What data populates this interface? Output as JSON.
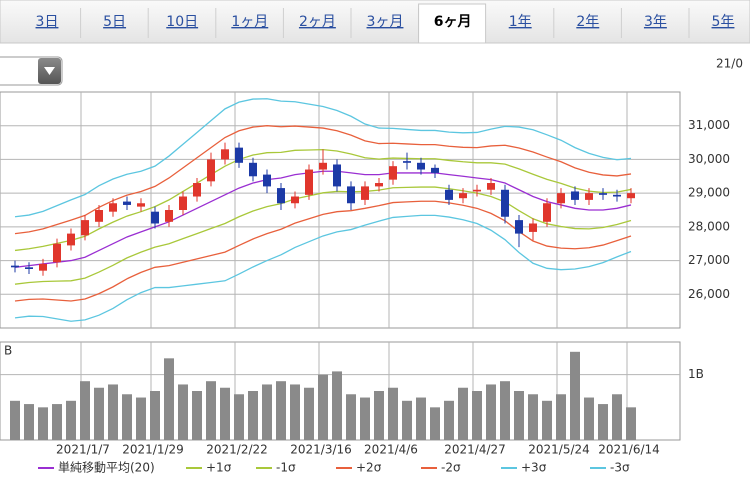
{
  "tabs": [
    "3日",
    "5日",
    "10日",
    "1ヶ月",
    "2ヶ月",
    "3ヶ月",
    "6ヶ月",
    "1年",
    "2年",
    "3年",
    "5年"
  ],
  "active_tab": "6ヶ月",
  "date_label": "21/0",
  "chart_data": {
    "type": "candlestick",
    "categories": [
      null,
      null,
      null,
      null,
      null,
      "2021/1/7",
      null,
      null,
      null,
      null,
      "2021/1/29",
      null,
      null,
      null,
      null,
      null,
      "2021/2/22",
      null,
      null,
      null,
      null,
      null,
      "2021/3/16",
      null,
      null,
      null,
      null,
      "2021/4/6",
      null,
      null,
      null,
      null,
      null,
      "2021/4/27",
      null,
      null,
      null,
      null,
      null,
      "2021/5/24",
      null,
      null,
      null,
      null,
      "2021/6/14"
    ],
    "open": [
      26850,
      26800,
      26700,
      26950,
      27450,
      27750,
      28150,
      28450,
      28750,
      28600,
      28450,
      28150,
      28500,
      28900,
      29350,
      30000,
      30350,
      29900,
      29550,
      29150,
      28700,
      28950,
      29700,
      29850,
      29200,
      28800,
      29200,
      29400,
      29950,
      29900,
      29750,
      29100,
      28850,
      29050,
      29100,
      29100,
      28200,
      27850,
      28150,
      28700,
      29050,
      28800,
      29000,
      28950,
      28850
    ],
    "high": [
      27000,
      26950,
      27050,
      27650,
      27950,
      28350,
      28650,
      28850,
      28900,
      28850,
      28600,
      28650,
      29050,
      29450,
      30200,
      30500,
      30500,
      30050,
      29700,
      29300,
      29050,
      29850,
      30300,
      30000,
      29350,
      29350,
      29450,
      29950,
      30200,
      30050,
      29850,
      29250,
      29150,
      29250,
      29450,
      29250,
      28350,
      28250,
      28850,
      29150,
      29200,
      29150,
      29150,
      29100,
      29150
    ],
    "low": [
      26650,
      26600,
      26550,
      26800,
      27300,
      27600,
      28000,
      28300,
      28500,
      28450,
      27950,
      28000,
      28350,
      28750,
      29200,
      29850,
      29750,
      29350,
      29000,
      28500,
      28550,
      28800,
      29550,
      29050,
      28500,
      28650,
      29050,
      29250,
      29700,
      29550,
      29450,
      28650,
      28700,
      28900,
      28950,
      28100,
      27400,
      27600,
      28000,
      28550,
      28650,
      28650,
      28800,
      28750,
      28700
    ],
    "close": [
      26800,
      26750,
      26900,
      27500,
      27800,
      28200,
      28500,
      28700,
      28650,
      28700,
      28100,
      28500,
      28900,
      29300,
      30000,
      30300,
      29900,
      29500,
      29200,
      28700,
      28900,
      29700,
      29900,
      29200,
      28700,
      29200,
      29300,
      29800,
      29900,
      29700,
      29600,
      28800,
      29000,
      29100,
      29300,
      28300,
      27800,
      28100,
      28700,
      29000,
      28800,
      29000,
      28950,
      28900,
      29000
    ],
    "up_color": "#e0362c",
    "down_color": "#1c3aa6",
    "series": [
      {
        "name": "単純移動平均(20)",
        "color": "#9a2fd2",
        "values": [
          26800,
          26850,
          26900,
          26950,
          27000,
          27100,
          27300,
          27500,
          27700,
          27850,
          28000,
          28150,
          28350,
          28550,
          28750,
          28950,
          29150,
          29300,
          29400,
          29450,
          29550,
          29600,
          29650,
          29650,
          29600,
          29550,
          29550,
          29600,
          29600,
          29600,
          29600,
          29550,
          29500,
          29450,
          29400,
          29300,
          29100,
          28900,
          28750,
          28650,
          28550,
          28500,
          28500,
          28550,
          28650
        ]
      },
      {
        "name": "+1σ",
        "color": "#a9c83a",
        "values": [
          27300,
          27350,
          27420,
          27510,
          27600,
          27720,
          27940,
          28140,
          28320,
          28450,
          28600,
          28800,
          29050,
          29300,
          29550,
          29800,
          30000,
          30130,
          30200,
          30210,
          30270,
          30280,
          30290,
          30250,
          30160,
          30050,
          30010,
          30040,
          30030,
          30020,
          30020,
          29970,
          29930,
          29900,
          29900,
          29860,
          29720,
          29560,
          29410,
          29290,
          29150,
          29060,
          29020,
          29030,
          29110
        ]
      },
      {
        "name": "-1σ",
        "color": "#a9c83a",
        "values": [
          26300,
          26350,
          26380,
          26390,
          26400,
          26480,
          26660,
          26860,
          27080,
          27250,
          27400,
          27500,
          27650,
          27800,
          27950,
          28100,
          28300,
          28470,
          28600,
          28690,
          28830,
          28920,
          29010,
          29050,
          29040,
          29050,
          29090,
          29160,
          29170,
          29180,
          29180,
          29130,
          29070,
          29000,
          28900,
          28740,
          28480,
          28240,
          28090,
          28010,
          27950,
          27940,
          27980,
          28070,
          28190
        ]
      },
      {
        "name": "+2σ",
        "color": "#e8603c",
        "values": [
          27800,
          27850,
          27940,
          28070,
          28200,
          28340,
          28580,
          28780,
          28940,
          29050,
          29200,
          29450,
          29750,
          30050,
          30350,
          30650,
          30850,
          30960,
          31000,
          30970,
          30990,
          30960,
          30930,
          30850,
          30720,
          30550,
          30470,
          30480,
          30460,
          30440,
          30440,
          30390,
          30360,
          30350,
          30400,
          30420,
          30340,
          30220,
          30070,
          29930,
          29750,
          29620,
          29540,
          29510,
          29570
        ]
      },
      {
        "name": "-2σ",
        "color": "#e8603c",
        "values": [
          25800,
          25850,
          25860,
          25830,
          25800,
          25860,
          26020,
          26220,
          26460,
          26650,
          26800,
          26850,
          26950,
          27050,
          27150,
          27250,
          27450,
          27640,
          27800,
          27930,
          28110,
          28240,
          28370,
          28450,
          28480,
          28550,
          28630,
          28720,
          28740,
          28760,
          28760,
          28710,
          28640,
          28550,
          28400,
          28180,
          27860,
          27580,
          27430,
          27370,
          27350,
          27380,
          27460,
          27590,
          27730
        ]
      },
      {
        "name": "+3σ",
        "color": "#5cc6e0",
        "values": [
          28300,
          28350,
          28460,
          28630,
          28800,
          28960,
          29220,
          29420,
          29560,
          29650,
          29800,
          30100,
          30450,
          30800,
          31150,
          31500,
          31700,
          31790,
          31800,
          31730,
          31710,
          31640,
          31570,
          31450,
          31280,
          31050,
          30930,
          30920,
          30890,
          30860,
          30860,
          30810,
          30790,
          30800,
          30900,
          30980,
          30960,
          30880,
          30730,
          30570,
          30350,
          30180,
          30060,
          29990,
          30030
        ]
      },
      {
        "name": "-3σ",
        "color": "#5cc6e0",
        "values": [
          25300,
          25350,
          25340,
          25270,
          25200,
          25240,
          25380,
          25580,
          25840,
          26050,
          26200,
          26200,
          26250,
          26300,
          26350,
          26400,
          26600,
          26810,
          27000,
          27170,
          27390,
          27560,
          27730,
          27850,
          27920,
          28050,
          28170,
          28280,
          28310,
          28340,
          28340,
          28290,
          28210,
          28100,
          27900,
          27620,
          27240,
          26920,
          26770,
          26730,
          26750,
          26820,
          26940,
          27110,
          27270
        ]
      }
    ],
    "ylim": [
      25000,
      32000
    ],
    "yticks": [
      {
        "value": 26000,
        "label": "26,000"
      },
      {
        "value": 27000,
        "label": "27,000"
      },
      {
        "value": 28000,
        "label": "28,000"
      },
      {
        "value": 29000,
        "label": "29,000"
      },
      {
        "value": 30000,
        "label": "30,000"
      },
      {
        "value": 31000,
        "label": "31,000"
      }
    ],
    "grid": true,
    "volume": {
      "unit": "B",
      "color": "#8a8a8a",
      "values": [
        0.6,
        0.55,
        0.5,
        0.55,
        0.6,
        0.9,
        0.8,
        0.85,
        0.7,
        0.65,
        0.75,
        1.25,
        0.85,
        0.75,
        0.9,
        0.8,
        0.7,
        0.75,
        0.85,
        0.9,
        0.85,
        0.8,
        1.0,
        1.05,
        0.7,
        0.65,
        0.75,
        0.8,
        0.6,
        0.65,
        0.5,
        0.6,
        0.8,
        0.75,
        0.85,
        0.9,
        0.75,
        0.7,
        0.6,
        0.7,
        1.35,
        0.65,
        0.55,
        0.7,
        0.5
      ],
      "ylim": [
        0,
        1.5
      ],
      "yticks": [
        {
          "value": 1,
          "label": "1B"
        }
      ]
    }
  }
}
